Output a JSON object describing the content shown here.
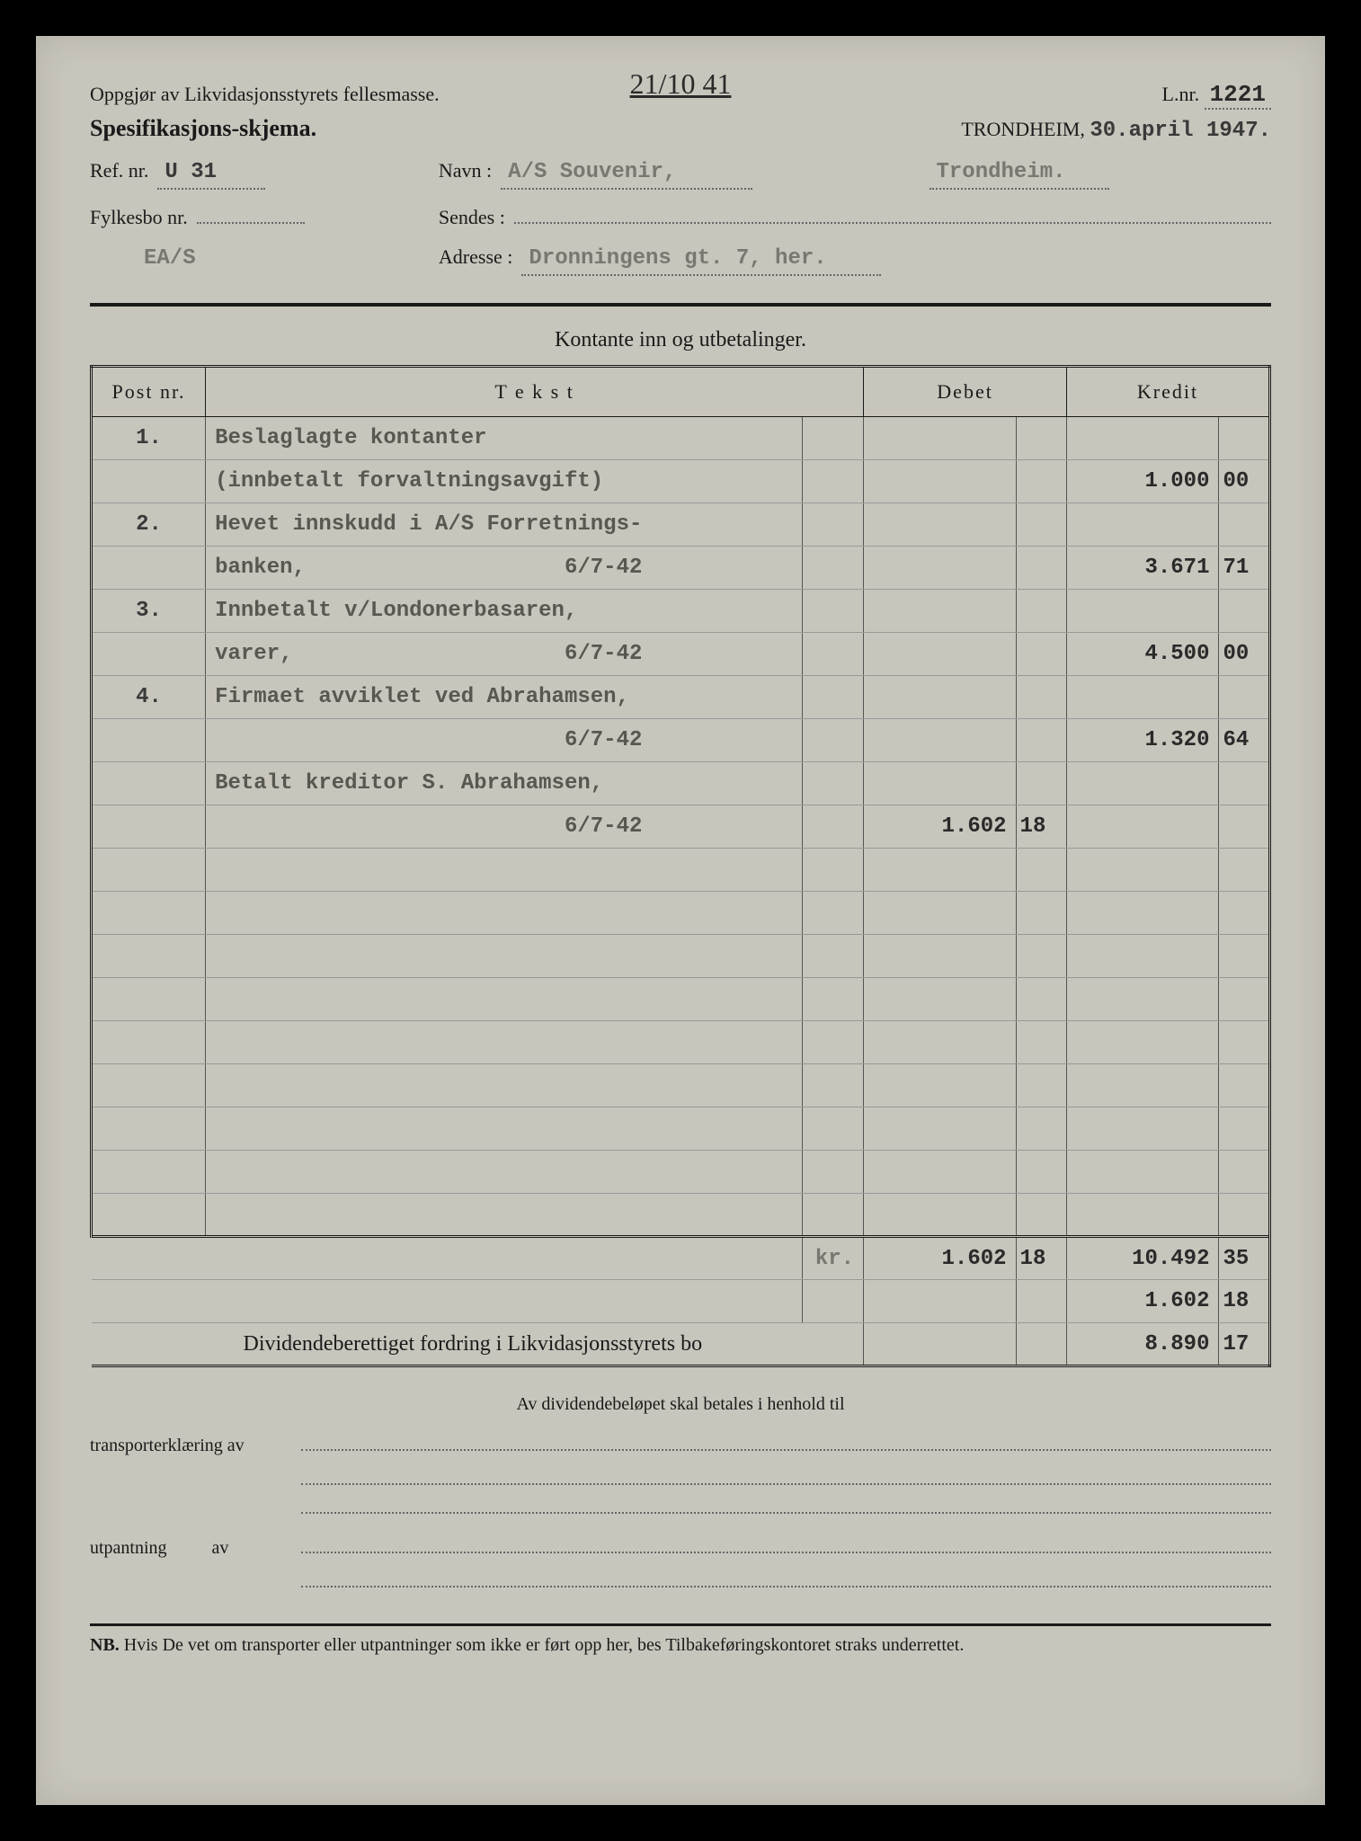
{
  "handwritten_top": "21/10 41",
  "header": {
    "title1": "Oppgjør av Likvidasjonsstyrets fellesmasse.",
    "title2": "Spesifikasjons-skjema.",
    "lnr_label": "L.nr.",
    "lnr_value": "1221",
    "city_label": "TRONDHEIM,",
    "date": "30.april 1947."
  },
  "fields": {
    "ref_label": "Ref. nr.",
    "ref_value": "U 31",
    "navn_label": "Navn :",
    "navn_value": "A/S Souvenir,",
    "navn_city": "Trondheim.",
    "fylkesbo_label": "Fylkesbo nr.",
    "fylkesbo_value": "",
    "sendes_label": "Sendes :",
    "sendes_value": "",
    "adresse_label": "Adresse :",
    "adresse_value": "Dronningens gt. 7, her.",
    "code": "EA/S"
  },
  "section_title": "Kontante inn og utbetalinger.",
  "columns": {
    "post": "Post nr.",
    "tekst": "T e k s t",
    "debet": "Debet",
    "kredit": "Kredit"
  },
  "rows": [
    {
      "post": "1.",
      "text": "Beslaglagte kontanter",
      "debet": "",
      "debet_dec": "",
      "kredit": "",
      "kredit_dec": ""
    },
    {
      "post": "",
      "text": "(innbetalt forvaltningsavgift)",
      "debet": "",
      "debet_dec": "",
      "kredit": "1.000",
      "kredit_dec": "00"
    },
    {
      "post": "2.",
      "text": "Hevet innskudd i A/S Forretnings-",
      "debet": "",
      "debet_dec": "",
      "kredit": "",
      "kredit_dec": ""
    },
    {
      "post": "",
      "text": "banken,                    6/7-42",
      "debet": "",
      "debet_dec": "",
      "kredit": "3.671",
      "kredit_dec": "71"
    },
    {
      "post": "3.",
      "text": "Innbetalt v/Londonerbasaren,",
      "debet": "",
      "debet_dec": "",
      "kredit": "",
      "kredit_dec": ""
    },
    {
      "post": "",
      "text": "varer,                     6/7-42",
      "debet": "",
      "debet_dec": "",
      "kredit": "4.500",
      "kredit_dec": "00"
    },
    {
      "post": "4.",
      "text": "Firmaet avviklet ved Abrahamsen,",
      "debet": "",
      "debet_dec": "",
      "kredit": "",
      "kredit_dec": ""
    },
    {
      "post": "",
      "text": "                           6/7-42",
      "debet": "",
      "debet_dec": "",
      "kredit": "1.320",
      "kredit_dec": "64"
    },
    {
      "post": "",
      "text": "Betalt kreditor S. Abrahamsen,",
      "debet": "",
      "debet_dec": "",
      "kredit": "",
      "kredit_dec": ""
    },
    {
      "post": "",
      "text": "                           6/7-42",
      "debet": "1.602",
      "debet_dec": "18",
      "kredit": "",
      "kredit_dec": ""
    },
    {
      "post": "",
      "text": "",
      "debet": "",
      "debet_dec": "",
      "kredit": "",
      "kredit_dec": ""
    },
    {
      "post": "",
      "text": "",
      "debet": "",
      "debet_dec": "",
      "kredit": "",
      "kredit_dec": ""
    },
    {
      "post": "",
      "text": "",
      "debet": "",
      "debet_dec": "",
      "kredit": "",
      "kredit_dec": ""
    },
    {
      "post": "",
      "text": "",
      "debet": "",
      "debet_dec": "",
      "kredit": "",
      "kredit_dec": ""
    },
    {
      "post": "",
      "text": "",
      "debet": "",
      "debet_dec": "",
      "kredit": "",
      "kredit_dec": ""
    },
    {
      "post": "",
      "text": "",
      "debet": "",
      "debet_dec": "",
      "kredit": "",
      "kredit_dec": ""
    },
    {
      "post": "",
      "text": "",
      "debet": "",
      "debet_dec": "",
      "kredit": "",
      "kredit_dec": ""
    },
    {
      "post": "",
      "text": "",
      "debet": "",
      "debet_dec": "",
      "kredit": "",
      "kredit_dec": ""
    },
    {
      "post": "",
      "text": "",
      "debet": "",
      "debet_dec": "",
      "kredit": "",
      "kredit_dec": ""
    }
  ],
  "totals": {
    "currency": "kr.",
    "debet_sum": "1.602",
    "debet_sum_dec": "18",
    "kredit_sum": "10.492",
    "kredit_sum_dec": "35",
    "row2_kredit": "1.602",
    "row2_kredit_dec": "18",
    "dividend_label": "Dividendeberettiget fordring i Likvidasjonsstyrets bo",
    "dividend_kredit": "8.890",
    "dividend_kredit_dec": "17"
  },
  "footer": {
    "center_text": "Av dividendebeløpet skal betales i henhold til",
    "transport_label": "transporterklæring av",
    "utpantning_label": "utpantning          av",
    "nb_prefix": "NB.",
    "nb_text": "Hvis De vet om transporter eller utpantninger som ikke er ført opp her, bes Tilbakeføringskontoret straks underrettet."
  }
}
